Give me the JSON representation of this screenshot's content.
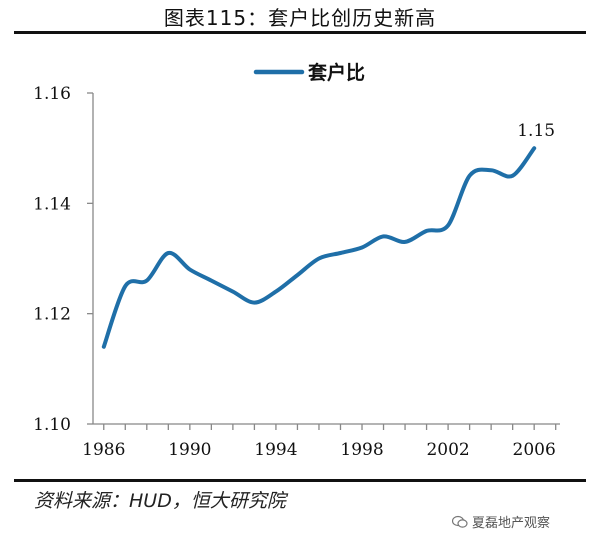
{
  "title": "图表115：套户比创历史新高",
  "source": "资料来源：HUD，恒大研究院",
  "watermark": "夏磊地产观察",
  "colors": {
    "series": "#1f6fa8",
    "axis": "#888888",
    "text": "#111111"
  },
  "chart_data": {
    "type": "line",
    "title": "图表115：套户比创历史新高",
    "xlabel": "",
    "ylabel": "",
    "xlim": [
      1985.5,
      2007.2
    ],
    "ylim": [
      1.1,
      1.16
    ],
    "xticks": [
      1986,
      1990,
      1994,
      1998,
      2002,
      2006
    ],
    "xtick_labels": [
      "1986",
      "1990",
      "1994",
      "1998",
      "2002",
      "2006"
    ],
    "yticks": [
      1.1,
      1.12,
      1.14,
      1.16
    ],
    "ytick_labels": [
      "1.10",
      "1.12",
      "1.14",
      "1.16"
    ],
    "grid": false,
    "legend": "top-center",
    "series": [
      {
        "name": "套户比",
        "x": [
          1986,
          1987,
          1988,
          1989,
          1990,
          1991,
          1992,
          1993,
          1994,
          1995,
          1996,
          1997,
          1998,
          1999,
          2000,
          2001,
          2002,
          2003,
          2004,
          2005,
          2006
        ],
        "y": [
          1.114,
          1.125,
          1.126,
          1.131,
          1.128,
          1.126,
          1.124,
          1.122,
          1.124,
          1.127,
          1.13,
          1.131,
          1.132,
          1.134,
          1.133,
          1.135,
          1.136,
          1.145,
          1.146,
          1.145,
          1.15
        ]
      }
    ],
    "annotations": [
      {
        "text": "1.15",
        "x": 2006,
        "y": 1.15
      }
    ]
  }
}
